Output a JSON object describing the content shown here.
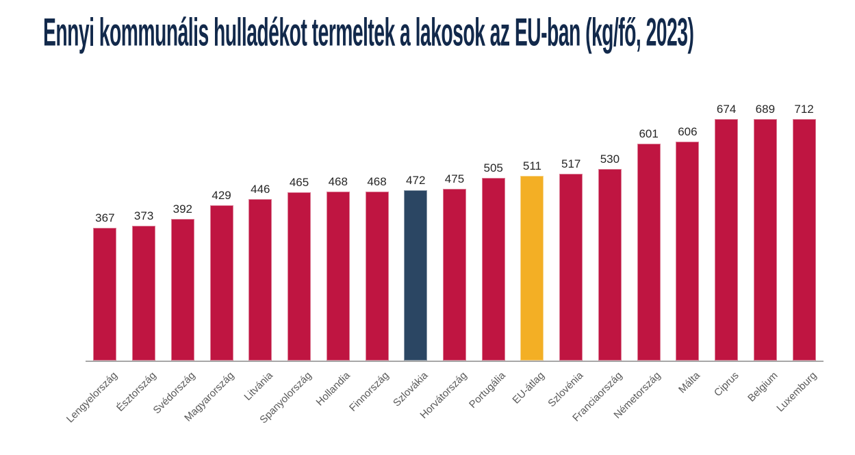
{
  "title": "Ennyi kommunális hulladékot termeltek a lakosok az EU-ban (kg/fő, 2023)",
  "colors": {
    "title": "#12294B",
    "bar_default": "#BF1541",
    "bar_szlovakia": "#2B4663",
    "bar_eu_atlag": "#F3AF25",
    "axis_line": "#A6A6A6",
    "value_label": "#262626",
    "category_label": "#595959",
    "background": "#FFFFFF"
  },
  "chart_data": {
    "type": "bar",
    "title": "Ennyi kommunális hulladékot termeltek a lakosok az EU-ban (kg/fő, 2023)",
    "xlabel": "",
    "ylabel": "kg/fő",
    "year": "2023",
    "ylim": [
      0,
      712
    ],
    "grid": false,
    "legend": false,
    "value_labels_shown": true,
    "categories": [
      "Lengyelország",
      "Észtország",
      "Svédország",
      "Magyarország",
      "Litvánia",
      "Spanyolország",
      "Hollandia",
      "Finnország",
      "Szlovákia",
      "Horvátország",
      "Portugália",
      "EU-átlag",
      "Szlovénia",
      "Franciaország",
      "Németország",
      "Málta",
      "Ciprus",
      "Belgium",
      "Luxemburg"
    ],
    "values": [
      367,
      373,
      392,
      429,
      446,
      465,
      468,
      468,
      472,
      475,
      505,
      511,
      517,
      530,
      601,
      606,
      674,
      689,
      712
    ],
    "bar_colors": [
      "#BF1541",
      "#BF1541",
      "#BF1541",
      "#BF1541",
      "#BF1541",
      "#BF1541",
      "#BF1541",
      "#BF1541",
      "#2B4663",
      "#BF1541",
      "#BF1541",
      "#F3AF25",
      "#BF1541",
      "#BF1541",
      "#BF1541",
      "#BF1541",
      "#BF1541",
      "#BF1541",
      "#BF1541"
    ],
    "highlights": [
      {
        "category": "Szlovákia",
        "color": "#2B4663"
      },
      {
        "category": "EU-átlag",
        "color": "#F3AF25"
      }
    ]
  }
}
